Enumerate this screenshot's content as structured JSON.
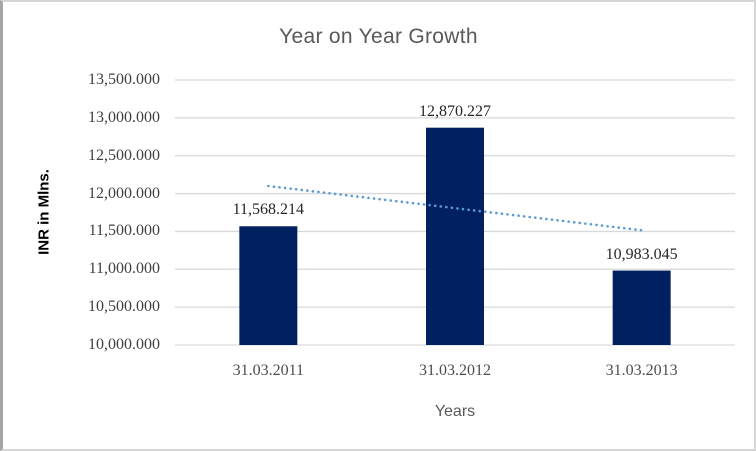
{
  "chart_data": {
    "type": "bar",
    "title": "Year on Year Growth",
    "xlabel": "Years",
    "ylabel": "INR in Mlns.",
    "categories": [
      "31.03.2011",
      "31.03.2012",
      "31.03.2013"
    ],
    "values": [
      11568.214,
      12870.227,
      10983.045
    ],
    "data_labels": [
      "11,568.214",
      "12,870.227",
      "10,983.045"
    ],
    "ylim": [
      10000,
      13500
    ],
    "ytick_step": 500,
    "ytick_labels": [
      "10,000.000",
      "10,500.000",
      "11,000.000",
      "11,500.000",
      "12,000.000",
      "12,500.000",
      "13,000.000",
      "13,500.000"
    ],
    "grid": true,
    "legend": "none",
    "bar_color": "#002060",
    "gridline_color": "#d9d9d9",
    "title_color": "#595959",
    "trendline": {
      "style": "dotted",
      "color": "#5b9bd5",
      "start_value": 12100,
      "end_value": 11515
    }
  }
}
